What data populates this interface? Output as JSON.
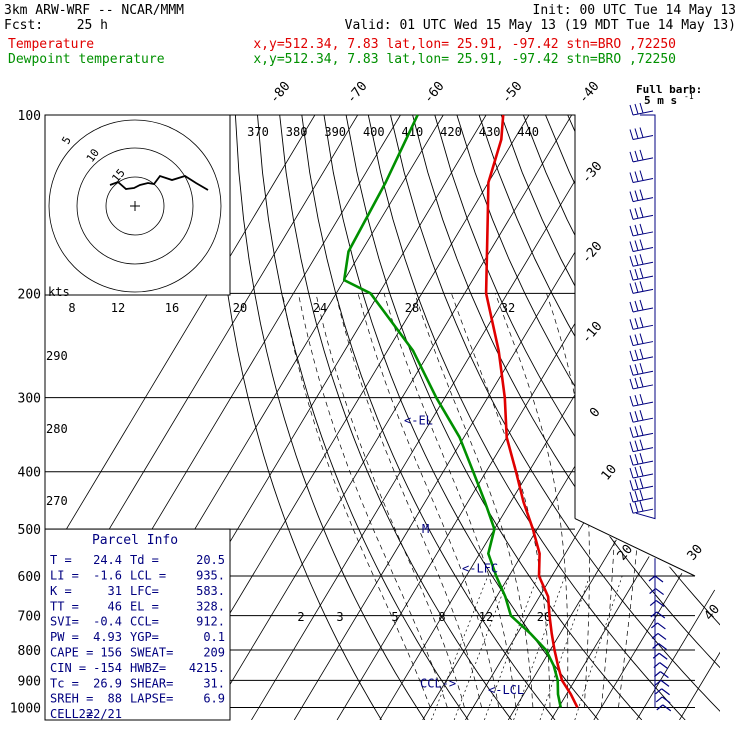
{
  "header": {
    "model": "3km ARW-WRF -- NCAR/MMM",
    "init": "Init: 00 UTC Tue 14 May 13",
    "fcst_label": "Fcst:",
    "fcst_value": "25 h",
    "valid": "Valid: 01 UTC Wed 15 May 13 (19 MDT Tue 14 May 13)",
    "line1_label": "Temperature",
    "line1_info": "x,y=512.34,  7.83   lat,lon= 25.91, -97.42  stn=BRO ,72250",
    "line2_label": "Dewpoint temperature",
    "line2_info": "x,y=512.34,  7.83   lat,lon= 25.91, -97.42  stn=BRO ,72250"
  },
  "colors": {
    "temperature": "#e00000",
    "dewpoint": "#009000",
    "annotation": "#000080",
    "grid": "#000000"
  },
  "barb_legend": {
    "line1": "Full barb:",
    "line2": "5 m s",
    "sup": "-1"
  },
  "hodograph": {
    "unit_label": "kts",
    "ring_labels": [
      "5",
      "10",
      "15"
    ]
  },
  "parcel_info": {
    "title": "Parcel Info",
    "rows": [
      [
        "T  =",
        "24.4",
        "Td =",
        "20.5"
      ],
      [
        "LI =",
        "-1.6",
        "LCL =",
        "935."
      ],
      [
        "K  =",
        "31",
        "LFC=",
        "583."
      ],
      [
        "TT =",
        "46",
        "EL =",
        "328."
      ],
      [
        "SVI=",
        "-0.4",
        "CCL=",
        "912."
      ],
      [
        "PW =",
        "4.93",
        "YGP=",
        "0.1"
      ],
      [
        "CAPE =",
        "156",
        "SWEAT=",
        "209"
      ],
      [
        "CIN =",
        "-154",
        "HWBZ=",
        "4215."
      ],
      [
        "Tc =",
        "26.9",
        "SHEAR=",
        "31."
      ],
      [
        "SREH =",
        "88",
        "LAPSE=",
        "6.9"
      ],
      [
        "CELL =",
        "222/21",
        "",
        ""
      ]
    ]
  },
  "chart_data": {
    "type": "skew-T log-P sounding",
    "y_axis": {
      "pressure_levels": [
        100,
        200,
        300,
        400,
        500,
        600,
        700,
        800,
        900,
        1000
      ],
      "scale": "log"
    },
    "isotherm_labels": [
      "-80",
      "-70",
      "-60",
      "-50",
      "-40",
      "-30",
      "-20",
      "-10",
      "0",
      "10",
      "20",
      "30",
      "40"
    ],
    "theta_e_labels": [
      "370",
      "380",
      "390",
      "400",
      "410",
      "420",
      "430",
      "440"
    ],
    "mixing_ratio_upper_labels": [
      "8",
      "12",
      "16",
      "20",
      "24",
      "28",
      "32"
    ],
    "mixing_ratio_lower_labels": [
      "2",
      "3",
      "5",
      "8",
      "12",
      "20"
    ],
    "adiabat_labels": [
      "290",
      "280",
      "270"
    ],
    "series": [
      {
        "name": "Temperature",
        "points": [
          [
            100,
            -76
          ],
          [
            110,
            -73
          ],
          [
            130,
            -70
          ],
          [
            150,
            -65
          ],
          [
            200,
            -55
          ],
          [
            250,
            -44
          ],
          [
            300,
            -36
          ],
          [
            350,
            -30
          ],
          [
            400,
            -23
          ],
          [
            450,
            -17
          ],
          [
            500,
            -11
          ],
          [
            550,
            -6
          ],
          [
            600,
            -3
          ],
          [
            650,
            2
          ],
          [
            700,
            5
          ],
          [
            750,
            8
          ],
          [
            800,
            11
          ],
          [
            850,
            14
          ],
          [
            900,
            17
          ],
          [
            950,
            21
          ],
          [
            1000,
            24.4
          ]
        ]
      },
      {
        "name": "Dewpoint temperature",
        "points": [
          [
            100,
            -96
          ],
          [
            130,
            -94
          ],
          [
            170,
            -93
          ],
          [
            190,
            -90
          ],
          [
            200,
            -82
          ],
          [
            250,
            -64
          ],
          [
            300,
            -52
          ],
          [
            350,
            -41
          ],
          [
            400,
            -33
          ],
          [
            450,
            -26
          ],
          [
            500,
            -20
          ],
          [
            550,
            -18
          ],
          [
            600,
            -13
          ],
          [
            650,
            -8
          ],
          [
            700,
            -4
          ],
          [
            750,
            3
          ],
          [
            800,
            9
          ],
          [
            850,
            13
          ],
          [
            900,
            16
          ],
          [
            950,
            18
          ],
          [
            1000,
            20.5
          ]
        ]
      }
    ],
    "annotations": [
      {
        "text": "<-EL",
        "pressure": 328
      },
      {
        "text": "<-LFC",
        "pressure": 583
      },
      {
        "text": "CCL->",
        "pressure": 912
      },
      {
        "text": "<-LCL",
        "pressure": 935
      },
      {
        "text": "M",
        "pressure": 500
      }
    ],
    "wind_barb_pressures": [
      100,
      110,
      120,
      130,
      140,
      150,
      160,
      170,
      180,
      190,
      200,
      215,
      230,
      245,
      260,
      275,
      290,
      310,
      330,
      350,
      370,
      390,
      410,
      430,
      450,
      470
    ]
  }
}
